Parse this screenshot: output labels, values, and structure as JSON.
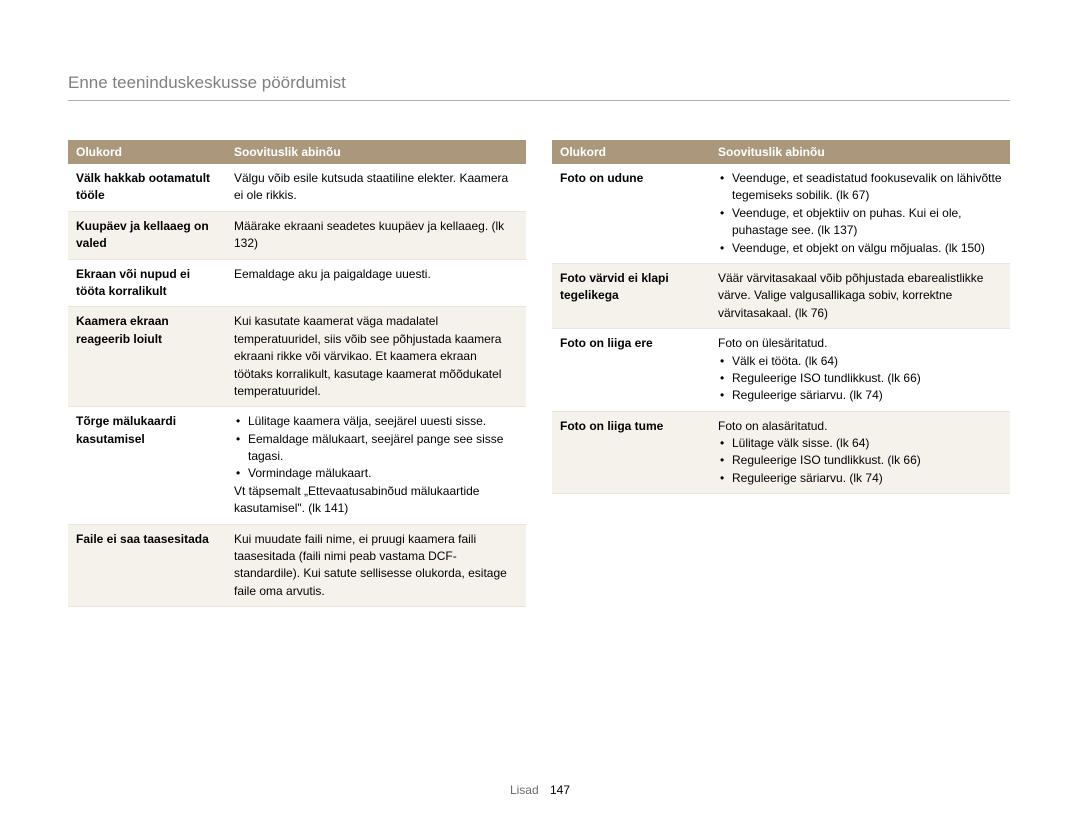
{
  "page": {
    "title": "Enne teeninduskeskusse pöördumist",
    "footer_label": "Lisad",
    "footer_page": "147"
  },
  "colors": {
    "header_bg": "#ab987c",
    "header_text": "#ffffff",
    "shaded_row": "#f5f2ec",
    "rule": "#b0b0b0",
    "title_color": "#808080"
  },
  "tables": {
    "left": {
      "headers": {
        "situation": "Olukord",
        "remedy": "Soovituslik abinõu"
      },
      "rows": [
        {
          "shaded": false,
          "situation": "Välk hakkab ootamatult tööle",
          "remedy_plain": "Välgu võib esile kutsuda staatiline elekter. Kaamera ei ole rikkis."
        },
        {
          "shaded": true,
          "situation": "Kuupäev ja kellaaeg on valed",
          "remedy_plain": "Määrake ekraani seadetes kuupäev ja kellaaeg. (lk 132)"
        },
        {
          "shaded": false,
          "situation": "Ekraan või nupud ei tööta korralikult",
          "remedy_plain": "Eemaldage aku ja paigaldage uuesti."
        },
        {
          "shaded": true,
          "situation": "Kaamera ekraan reageerib loiult",
          "remedy_plain": "Kui kasutate kaamerat väga madalatel temperatuuridel, siis võib see põhjustada kaamera ekraani rikke või värvikao. Et kaamera ekraan töötaks korralikult, kasutage kaamerat mõõdukatel temperatuuridel."
        },
        {
          "shaded": false,
          "situation": "Tõrge mälukaardi kasutamisel",
          "remedy_bullets": [
            "Lülitage kaamera välja, seejärel uuesti sisse.",
            "Eemaldage mälukaart, seejärel pange see sisse tagasi.",
            "Vormindage mälukaart."
          ],
          "remedy_after": "Vt täpsemalt „Ettevaatusabinõud mälukaartide kasutamisel\". (lk 141)"
        },
        {
          "shaded": true,
          "situation": "Faile ei saa taasesitada",
          "remedy_plain": "Kui muudate faili nime, ei pruugi kaamera faili taasesitada (faili nimi peab vastama DCF-standardile). Kui satute sellisesse olukorda, esitage faile oma arvutis."
        }
      ]
    },
    "right": {
      "headers": {
        "situation": "Olukord",
        "remedy": "Soovituslik abinõu"
      },
      "rows": [
        {
          "shaded": false,
          "situation": "Foto on udune",
          "remedy_bullets": [
            "Veenduge, et seadistatud fookusevalik on lähivõtte tegemiseks sobilik. (lk 67)",
            "Veenduge, et objektiiv on puhas. Kui ei ole, puhastage see. (lk 137)",
            "Veenduge, et objekt on välgu mõjualas. (lk 150)"
          ]
        },
        {
          "shaded": true,
          "situation": "Foto värvid ei klapi tegelikega",
          "remedy_plain": "Väär värvitasakaal võib põhjustada ebarealistlikke värve. Valige valgusallikaga sobiv, korrektne värvitasakaal. (lk 76)"
        },
        {
          "shaded": false,
          "situation": "Foto on liiga ere",
          "remedy_before": "Foto on ülesäritatud.",
          "remedy_bullets": [
            "Välk ei tööta. (lk 64)",
            "Reguleerige ISO tundlikkust. (lk 66)",
            "Reguleerige säriarvu. (lk 74)"
          ]
        },
        {
          "shaded": true,
          "situation": "Foto on liiga tume",
          "remedy_before": "Foto on alasäritatud.",
          "remedy_bullets": [
            "Lülitage välk sisse. (lk 64)",
            "Reguleerige ISO tundlikkust. (lk 66)",
            "Reguleerige säriarvu. (lk 74)"
          ]
        }
      ]
    }
  }
}
